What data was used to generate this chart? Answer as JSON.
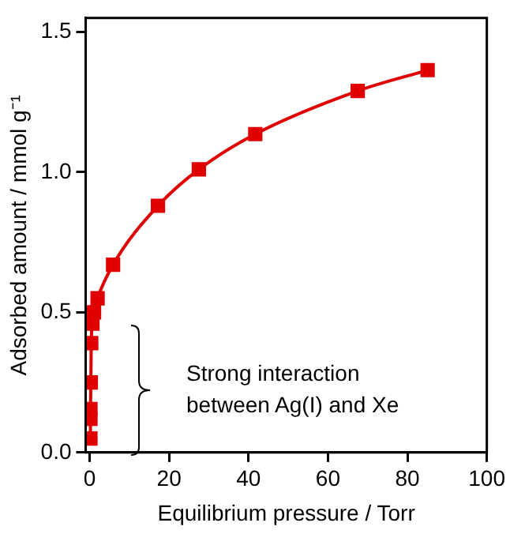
{
  "chart_data": {
    "type": "line",
    "xlabel": "Equilibrium pressure / Torr",
    "ylabel": "Adsorbed amount / mmol g⁻¹",
    "x": [
      0.2,
      0.2,
      0.2,
      0.3,
      0.4,
      0.7,
      1.1,
      2.0,
      5.9,
      17.2,
      27.5,
      41.7,
      67.5,
      85.1
    ],
    "series": [
      {
        "color": "#e00000",
        "values": [
          0.05,
          0.12,
          0.155,
          0.25,
          0.39,
          0.46,
          0.5,
          0.55,
          0.67,
          0.88,
          1.01,
          1.136,
          1.29,
          1.364
        ]
      }
    ],
    "xlim": [
      -1,
      100
    ],
    "xticks": [
      0,
      20,
      40,
      60,
      80,
      100
    ],
    "ylim": [
      0,
      1.55
    ],
    "yticks": [
      {
        "value": 0,
        "label": "0.0"
      },
      0.5,
      {
        "value": 1,
        "label": "1.0"
      },
      1.5
    ],
    "marker": "square",
    "grid": false,
    "legend": false,
    "annotations": [
      "Strong interaction between Ag(I) and Xe"
    ]
  }
}
